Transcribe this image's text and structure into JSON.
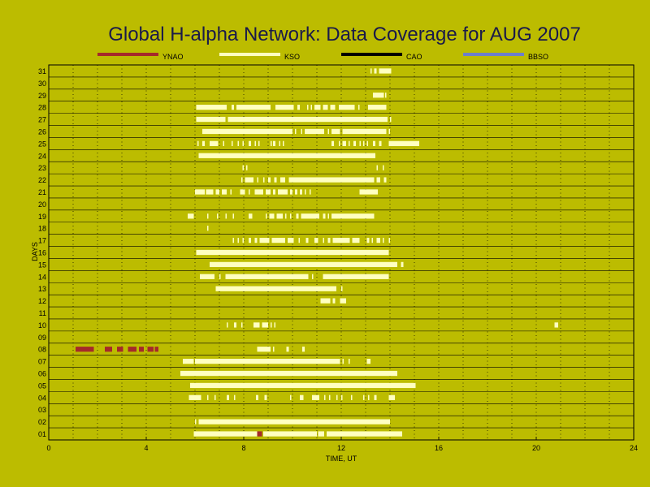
{
  "chart_data": {
    "type": "coverage_timeline",
    "title": "Global H-alpha Network: Data Coverage for AUG 2007",
    "xlabel": "TIME, UT",
    "ylabel": "DAYS",
    "xlim": [
      0,
      24
    ],
    "x_ticks": [
      "0",
      "4",
      "8",
      "12",
      "16",
      "20",
      "24"
    ],
    "y_ticks": [
      "01",
      "02",
      "03",
      "04",
      "05",
      "06",
      "07",
      "08",
      "09",
      "10",
      "11",
      "12",
      "13",
      "14",
      "15",
      "16",
      "17",
      "18",
      "19",
      "20",
      "21",
      "22",
      "23",
      "24",
      "25",
      "26",
      "27",
      "28",
      "29",
      "30",
      "31"
    ],
    "grid": true,
    "legend": [
      {
        "name": "YNAO",
        "color": "#a52a2a"
      },
      {
        "name": "KSO",
        "color": "#ffffc0"
      },
      {
        "name": "CAO",
        "color": "#000000"
      },
      {
        "name": "BBSO",
        "color": "#6d7fc9"
      }
    ],
    "series": [
      {
        "name": "YNAO",
        "color": "#a52a2a",
        "coverage": [
          {
            "day": 1,
            "intervals": [
              [
                8.55,
                8.75
              ]
            ]
          },
          {
            "day": 8,
            "intervals": [
              [
                1.1,
                1.85
              ],
              [
                2.3,
                2.6
              ],
              [
                2.8,
                3.05
              ],
              [
                3.25,
                3.6
              ],
              [
                3.7,
                3.9
              ],
              [
                4.05,
                4.3
              ],
              [
                4.35,
                4.5
              ]
            ]
          }
        ]
      },
      {
        "name": "KSO",
        "color": "#ffffc0",
        "coverage": [
          {
            "day": 1,
            "intervals": [
              [
                5.95,
                8.55
              ],
              [
                8.8,
                11.0
              ],
              [
                11.05,
                11.3
              ],
              [
                11.4,
                14.5
              ]
            ]
          },
          {
            "day": 2,
            "intervals": [
              [
                6.0,
                6.05
              ],
              [
                6.15,
                14.0
              ]
            ]
          },
          {
            "day": 4,
            "intervals": [
              [
                5.75,
                6.25
              ],
              [
                6.5,
                6.55
              ],
              [
                6.8,
                6.85
              ],
              [
                7.3,
                7.4
              ],
              [
                7.6,
                7.65
              ],
              [
                8.5,
                8.6
              ],
              [
                8.85,
                8.95
              ],
              [
                9.9,
                9.95
              ],
              [
                10.3,
                10.45
              ],
              [
                10.8,
                11.1
              ],
              [
                11.3,
                11.35
              ],
              [
                11.5,
                11.55
              ],
              [
                11.8,
                11.85
              ],
              [
                12.0,
                12.05
              ],
              [
                12.4,
                12.45
              ],
              [
                12.9,
                12.95
              ],
              [
                13.1,
                13.15
              ],
              [
                13.35,
                13.45
              ],
              [
                13.95,
                14.2
              ]
            ]
          },
          {
            "day": 5,
            "intervals": [
              [
                5.8,
                15.05
              ]
            ]
          },
          {
            "day": 6,
            "intervals": [
              [
                5.4,
                14.3
              ]
            ]
          },
          {
            "day": 7,
            "intervals": [
              [
                5.5,
                5.95
              ],
              [
                6.0,
                11.95
              ],
              [
                12.05,
                12.1
              ],
              [
                12.3,
                12.35
              ],
              [
                13.05,
                13.2
              ]
            ]
          },
          {
            "day": 8,
            "intervals": [
              [
                8.55,
                9.1
              ],
              [
                9.2,
                9.25
              ],
              [
                9.75,
                9.85
              ],
              [
                10.4,
                10.5
              ]
            ]
          },
          {
            "day": 10,
            "intervals": [
              [
                7.3,
                7.35
              ],
              [
                7.6,
                7.7
              ],
              [
                7.9,
                7.95
              ],
              [
                8.4,
                8.65
              ],
              [
                8.75,
                9.0
              ],
              [
                9.1,
                9.15
              ],
              [
                9.25,
                9.3
              ],
              [
                20.75,
                20.9
              ]
            ]
          },
          {
            "day": 12,
            "intervals": [
              [
                11.15,
                11.55
              ],
              [
                11.65,
                11.75
              ],
              [
                11.95,
                12.2
              ]
            ]
          },
          {
            "day": 13,
            "intervals": [
              [
                6.85,
                11.8
              ],
              [
                12.0,
                12.05
              ]
            ]
          },
          {
            "day": 14,
            "intervals": [
              [
                6.2,
                6.8
              ],
              [
                7.0,
                7.05
              ],
              [
                7.25,
                10.65
              ],
              [
                10.8,
                10.85
              ],
              [
                11.25,
                13.95
              ]
            ]
          },
          {
            "day": 15,
            "intervals": [
              [
                6.6,
                14.3
              ],
              [
                14.45,
                14.55
              ]
            ]
          },
          {
            "day": 16,
            "intervals": [
              [
                6.05,
                13.95
              ]
            ]
          },
          {
            "day": 17,
            "intervals": [
              [
                7.55,
                7.6
              ],
              [
                7.75,
                7.8
              ],
              [
                7.95,
                8.0
              ],
              [
                8.2,
                8.3
              ],
              [
                8.45,
                8.55
              ],
              [
                8.65,
                9.05
              ],
              [
                9.15,
                9.7
              ],
              [
                9.8,
                10.05
              ],
              [
                10.25,
                10.3
              ],
              [
                10.55,
                10.65
              ],
              [
                10.9,
                11.05
              ],
              [
                11.25,
                11.3
              ],
              [
                11.45,
                11.55
              ],
              [
                11.65,
                12.35
              ],
              [
                12.45,
                12.75
              ],
              [
                13.05,
                13.15
              ],
              [
                13.25,
                13.3
              ],
              [
                13.45,
                13.6
              ],
              [
                13.7,
                13.75
              ],
              [
                13.95,
                14.0
              ]
            ]
          },
          {
            "day": 18,
            "intervals": [
              [
                6.5,
                6.55
              ]
            ]
          },
          {
            "day": 19,
            "intervals": [
              [
                5.7,
                5.95
              ],
              [
                6.5,
                6.55
              ],
              [
                6.9,
                6.95
              ],
              [
                7.25,
                7.3
              ],
              [
                7.55,
                7.6
              ],
              [
                8.2,
                8.35
              ],
              [
                8.9,
                8.95
              ],
              [
                9.05,
                9.25
              ],
              [
                9.35,
                9.6
              ],
              [
                9.7,
                9.75
              ],
              [
                9.9,
                9.95
              ],
              [
                10.15,
                10.25
              ],
              [
                10.35,
                11.1
              ],
              [
                11.25,
                11.35
              ],
              [
                11.45,
                11.5
              ],
              [
                11.6,
                13.35
              ]
            ]
          },
          {
            "day": 21,
            "intervals": [
              [
                6.0,
                6.4
              ],
              [
                6.45,
                6.75
              ],
              [
                6.85,
                7.0
              ],
              [
                7.1,
                7.3
              ],
              [
                7.45,
                7.5
              ],
              [
                7.85,
                8.05
              ],
              [
                8.2,
                8.25
              ],
              [
                8.45,
                8.8
              ],
              [
                8.9,
                9.1
              ],
              [
                9.2,
                9.3
              ],
              [
                9.4,
                9.8
              ],
              [
                9.9,
                10.0
              ],
              [
                10.1,
                10.2
              ],
              [
                10.3,
                10.4
              ],
              [
                10.5,
                10.55
              ],
              [
                10.7,
                10.75
              ],
              [
                12.75,
                13.5
              ]
            ]
          },
          {
            "day": 22,
            "intervals": [
              [
                7.9,
                7.95
              ],
              [
                8.05,
                8.4
              ],
              [
                8.55,
                8.6
              ],
              [
                8.8,
                8.85
              ],
              [
                9.0,
                9.1
              ],
              [
                9.25,
                9.35
              ],
              [
                9.5,
                9.7
              ],
              [
                9.85,
                13.35
              ],
              [
                13.45,
                13.6
              ],
              [
                13.75,
                13.85
              ]
            ]
          },
          {
            "day": 23,
            "intervals": [
              [
                7.95,
                8.0
              ],
              [
                8.1,
                8.15
              ],
              [
                13.45,
                13.5
              ],
              [
                13.7,
                13.75
              ]
            ]
          },
          {
            "day": 24,
            "intervals": [
              [
                6.15,
                13.4
              ]
            ]
          },
          {
            "day": 25,
            "intervals": [
              [
                6.1,
                6.15
              ],
              [
                6.3,
                6.4
              ],
              [
                6.6,
                6.95
              ],
              [
                7.15,
                7.2
              ],
              [
                7.5,
                7.55
              ],
              [
                7.75,
                7.8
              ],
              [
                7.95,
                8.0
              ],
              [
                8.2,
                8.3
              ],
              [
                8.45,
                8.5
              ],
              [
                8.6,
                8.65
              ],
              [
                9.1,
                9.15
              ],
              [
                9.2,
                9.3
              ],
              [
                9.45,
                9.5
              ],
              [
                9.6,
                9.65
              ],
              [
                11.6,
                11.7
              ],
              [
                11.9,
                11.95
              ],
              [
                12.05,
                12.2
              ],
              [
                12.3,
                12.35
              ],
              [
                12.5,
                12.6
              ],
              [
                12.75,
                12.8
              ],
              [
                12.9,
                12.95
              ],
              [
                13.05,
                13.1
              ],
              [
                13.3,
                13.4
              ],
              [
                13.55,
                13.65
              ],
              [
                13.95,
                15.2
              ]
            ]
          },
          {
            "day": 26,
            "intervals": [
              [
                6.3,
                10.0
              ],
              [
                10.1,
                10.15
              ],
              [
                10.35,
                10.4
              ],
              [
                10.5,
                11.3
              ],
              [
                11.45,
                11.5
              ],
              [
                11.6,
                11.95
              ],
              [
                12.05,
                13.85
              ],
              [
                13.95,
                14.0
              ]
            ]
          },
          {
            "day": 27,
            "intervals": [
              [
                6.05,
                7.25
              ],
              [
                7.35,
                13.9
              ],
              [
                14.0,
                14.05
              ]
            ]
          },
          {
            "day": 28,
            "intervals": [
              [
                6.05,
                7.3
              ],
              [
                7.5,
                7.6
              ],
              [
                7.7,
                9.1
              ],
              [
                9.3,
                10.05
              ],
              [
                10.2,
                10.3
              ],
              [
                10.6,
                10.65
              ],
              [
                10.75,
                10.8
              ],
              [
                10.9,
                11.15
              ],
              [
                11.25,
                11.45
              ],
              [
                11.55,
                11.75
              ],
              [
                11.9,
                12.55
              ],
              [
                12.7,
                12.75
              ],
              [
                13.1,
                13.85
              ]
            ]
          },
          {
            "day": 29,
            "intervals": [
              [
                13.3,
                13.75
              ],
              [
                13.8,
                13.85
              ]
            ]
          },
          {
            "day": 31,
            "intervals": [
              [
                13.2,
                13.25
              ],
              [
                13.35,
                13.45
              ],
              [
                13.55,
                14.05
              ]
            ]
          }
        ]
      },
      {
        "name": "CAO",
        "color": "#000000",
        "coverage": []
      },
      {
        "name": "BBSO",
        "color": "#6d7fc9",
        "coverage": []
      }
    ]
  }
}
